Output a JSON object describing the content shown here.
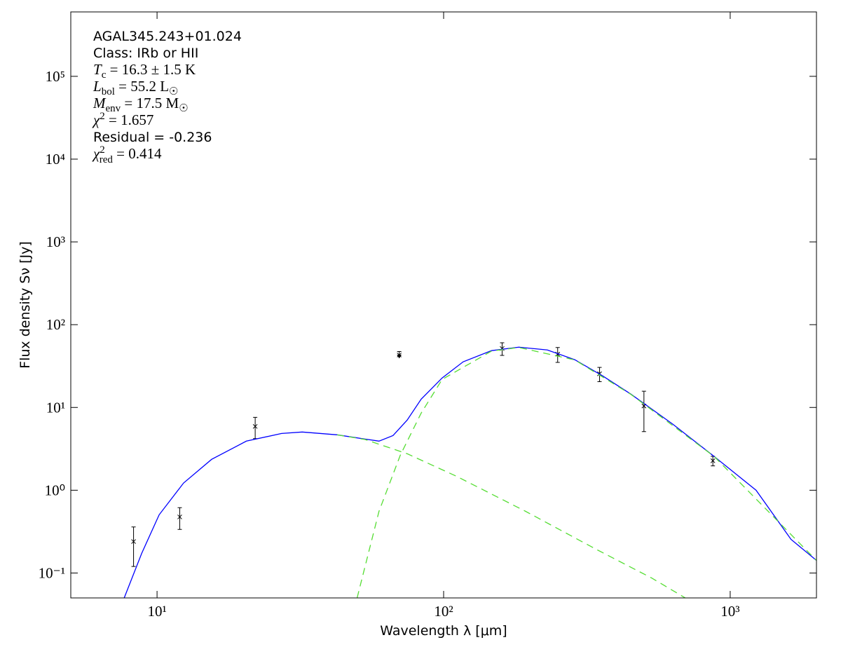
{
  "chart_data": {
    "type": "scatter",
    "xlabel": "Wavelength λ [μm]",
    "ylabel": "Flux density Sν [Jy]",
    "xscale": "log",
    "yscale": "log",
    "xlim": [
      5,
      2000
    ],
    "ylim": [
      0.05,
      600000
    ],
    "xticks": [
      {
        "value": 10,
        "label": "10¹"
      },
      {
        "value": 100,
        "label": "10²"
      },
      {
        "value": 1000,
        "label": "10³"
      }
    ],
    "yticks": [
      {
        "value": 0.1,
        "label": "10⁻¹"
      },
      {
        "value": 1,
        "label": "10⁰"
      },
      {
        "value": 10,
        "label": "10¹"
      },
      {
        "value": 100,
        "label": "10²"
      },
      {
        "value": 1000,
        "label": "10³"
      },
      {
        "value": 10000,
        "label": "10⁴"
      },
      {
        "value": 100000,
        "label": "10⁵"
      }
    ],
    "annotations": [
      {
        "font": "sans",
        "parts": [
          {
            "text": "AGAL345.243+01.024"
          }
        ]
      },
      {
        "font": "sans",
        "parts": [
          {
            "text": "Class: IRb or HII"
          }
        ]
      },
      {
        "font": "serif",
        "parts": [
          {
            "text": "T",
            "role": "italic"
          },
          {
            "text": "c",
            "role": "sub"
          },
          {
            "text": " = 16.3 ± 1.5 K"
          }
        ]
      },
      {
        "font": "serif",
        "parts": [
          {
            "text": "L",
            "role": "italic"
          },
          {
            "text": "bol",
            "role": "sub"
          },
          {
            "text": " = 55.2 L"
          },
          {
            "text": "☉",
            "role": "sub"
          }
        ]
      },
      {
        "font": "serif",
        "parts": [
          {
            "text": "M",
            "role": "italic"
          },
          {
            "text": "env",
            "role": "sub"
          },
          {
            "text": " = 17.5 M"
          },
          {
            "text": "☉",
            "role": "sub"
          }
        ]
      },
      {
        "font": "serif",
        "parts": [
          {
            "text": "χ",
            "role": "italic"
          },
          {
            "text": "2",
            "role": "sup"
          },
          {
            "text": " = 1.657"
          }
        ]
      },
      {
        "font": "sans",
        "parts": [
          {
            "text": "Residual = -0.236"
          }
        ]
      },
      {
        "font": "serif",
        "parts": [
          {
            "text": "χ",
            "role": "italic"
          },
          {
            "text": "2",
            "role": "sup"
          },
          {
            "text": "red",
            "role": "subunder"
          },
          {
            "text": " = 0.414"
          }
        ]
      }
    ],
    "series": [
      {
        "type": "errorbar",
        "color": "#000000",
        "x": [
          8.28,
          12,
          22,
          70,
          160,
          250,
          350,
          500,
          870
        ],
        "values": [
          0.24,
          0.476,
          5.9,
          43,
          51.5,
          44,
          25.5,
          10.4,
          2.27
        ],
        "errors": [
          0.12,
          0.14,
          1.7,
          null,
          9,
          9,
          5,
          5.3,
          0.3
        ],
        "upper_limits": [
          false,
          false,
          false,
          true,
          false,
          false,
          false,
          false,
          false
        ]
      },
      {
        "type": "line",
        "color": "#0000ff",
        "linestyle": "solid",
        "x": [
          7.68,
          8.84,
          10.17,
          12.37,
          15.5,
          20.5,
          27.2,
          32.1,
          42.5,
          53.2,
          59.5,
          66.6,
          74.6,
          83.5,
          98.8,
          117,
          147,
          183,
          230,
          287,
          359,
          450,
          631,
          880,
          1231,
          1630,
          2000
        ],
        "values": [
          0.05,
          0.173,
          0.505,
          1.22,
          2.36,
          3.92,
          4.85,
          5.05,
          4.67,
          4.15,
          3.92,
          4.58,
          7.03,
          12.6,
          22.7,
          35.6,
          48.6,
          53.5,
          49.5,
          37.7,
          24,
          14.5,
          6.27,
          2.55,
          1.0,
          0.255,
          0.142
        ]
      },
      {
        "type": "line",
        "color": "#55dd33",
        "linestyle": "dashed",
        "x": [
          42.5,
          53.2,
          74.6,
          110.6,
          193,
          340,
          532,
          697
        ],
        "values": [
          4.67,
          4.1,
          2.76,
          1.48,
          0.557,
          0.194,
          0.087,
          0.05
        ]
      },
      {
        "type": "line",
        "color": "#55dd33",
        "linestyle": "dashed",
        "x": [
          49.9,
          59.5,
          70.6,
          83.5,
          98.8,
          147,
          183,
          287,
          450,
          880,
          2000
        ],
        "values": [
          0.05,
          0.557,
          2.65,
          8.55,
          21.8,
          48,
          53,
          37.5,
          14.4,
          2.55,
          0.142
        ]
      }
    ]
  }
}
